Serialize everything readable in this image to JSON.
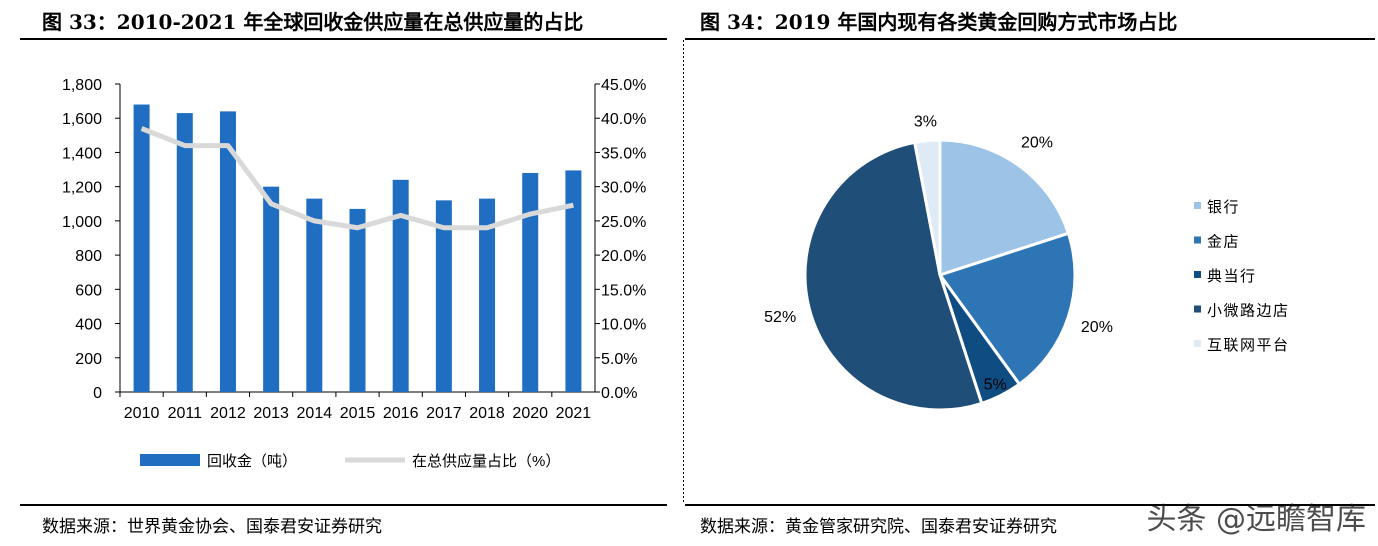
{
  "titles": {
    "left": "图 33：2010-2021 年全球回收金供应量在总供应量的占比",
    "right": "图 34：2019 年国内现有各类黄金回购方式市场占比"
  },
  "sources": {
    "left": "数据来源：世界黄金协会、国泰君安证券研究",
    "right": "数据来源：黄金管家研究院、国泰君安证券研究"
  },
  "watermark": "头条 @远瞻智库",
  "chart_data": [
    {
      "type": "bar",
      "categories": [
        "2010",
        "2011",
        "2012",
        "2013",
        "2014",
        "2015",
        "2016",
        "2017",
        "2018",
        "2020",
        "2021"
      ],
      "series": [
        {
          "name": "回收金（吨）",
          "type": "bar",
          "axis": "left",
          "color": "#1F6EC1",
          "values": [
            1680,
            1630,
            1640,
            1200,
            1130,
            1070,
            1240,
            1120,
            1130,
            1280,
            1295
          ]
        },
        {
          "name": "在总供应量占比（%）",
          "type": "line",
          "axis": "right",
          "color": "#D9D9D9",
          "values": [
            38.5,
            36.0,
            36.0,
            27.5,
            25.0,
            24.0,
            25.8,
            24.0,
            24.0,
            26.0,
            27.3
          ]
        }
      ],
      "ylim_left": [
        0,
        1800
      ],
      "yticks_left": [
        "0",
        "200",
        "400",
        "600",
        "800",
        "1,000",
        "1,200",
        "1,400",
        "1,600",
        "1,800"
      ],
      "ylim_right": [
        0,
        45
      ],
      "yticks_right": [
        "0.0%",
        "5.0%",
        "10.0%",
        "15.0%",
        "20.0%",
        "25.0%",
        "30.0%",
        "35.0%",
        "40.0%",
        "45.0%"
      ],
      "legend_position": "bottom",
      "grid": false
    },
    {
      "type": "pie",
      "slices": [
        {
          "label": "银行",
          "value": 20,
          "text": "20%",
          "color": "#9DC3E6"
        },
        {
          "label": "金店",
          "value": 20,
          "text": "20%",
          "color": "#2E75B6"
        },
        {
          "label": "典当行",
          "value": 5,
          "text": "5%",
          "color": "#0F4C81"
        },
        {
          "label": "小微路边店",
          "value": 52,
          "text": "52%",
          "color": "#1F4E79"
        },
        {
          "label": "互联网平台",
          "value": 3,
          "text": "3%",
          "color": "#DEEBF7"
        }
      ],
      "legend_position": "right"
    }
  ]
}
